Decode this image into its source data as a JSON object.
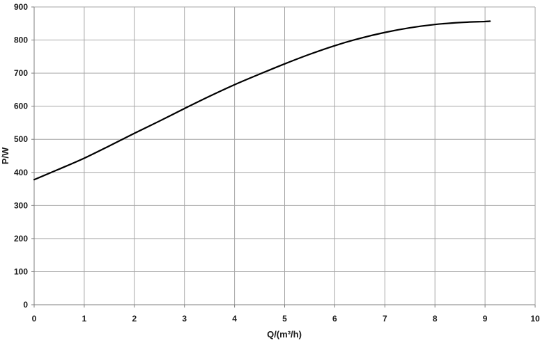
{
  "chart_data": {
    "type": "line",
    "title": "",
    "xlabel": "Q/(m³/h)",
    "ylabel": "P/W",
    "xlim": [
      0,
      10
    ],
    "ylim": [
      0,
      900
    ],
    "xticks": [
      0,
      1,
      2,
      3,
      4,
      5,
      6,
      7,
      8,
      9,
      10
    ],
    "yticks": [
      0,
      100,
      200,
      300,
      400,
      500,
      600,
      700,
      800,
      900
    ],
    "grid": true,
    "legend": "none",
    "colors": {
      "line": "#000000",
      "grid": "#a6a6a6",
      "axis": "#7f7f7f"
    },
    "series": [
      {
        "x": [
          0,
          0.5,
          1,
          1.5,
          2,
          2.5,
          3,
          3.5,
          4,
          4.5,
          5,
          5.5,
          6,
          6.5,
          7,
          7.5,
          8,
          8.5,
          9,
          9.1
        ],
        "y": [
          378,
          410,
          443,
          480,
          518,
          555,
          593,
          630,
          665,
          697,
          728,
          757,
          783,
          805,
          823,
          837,
          847,
          853,
          856,
          857
        ]
      }
    ]
  }
}
